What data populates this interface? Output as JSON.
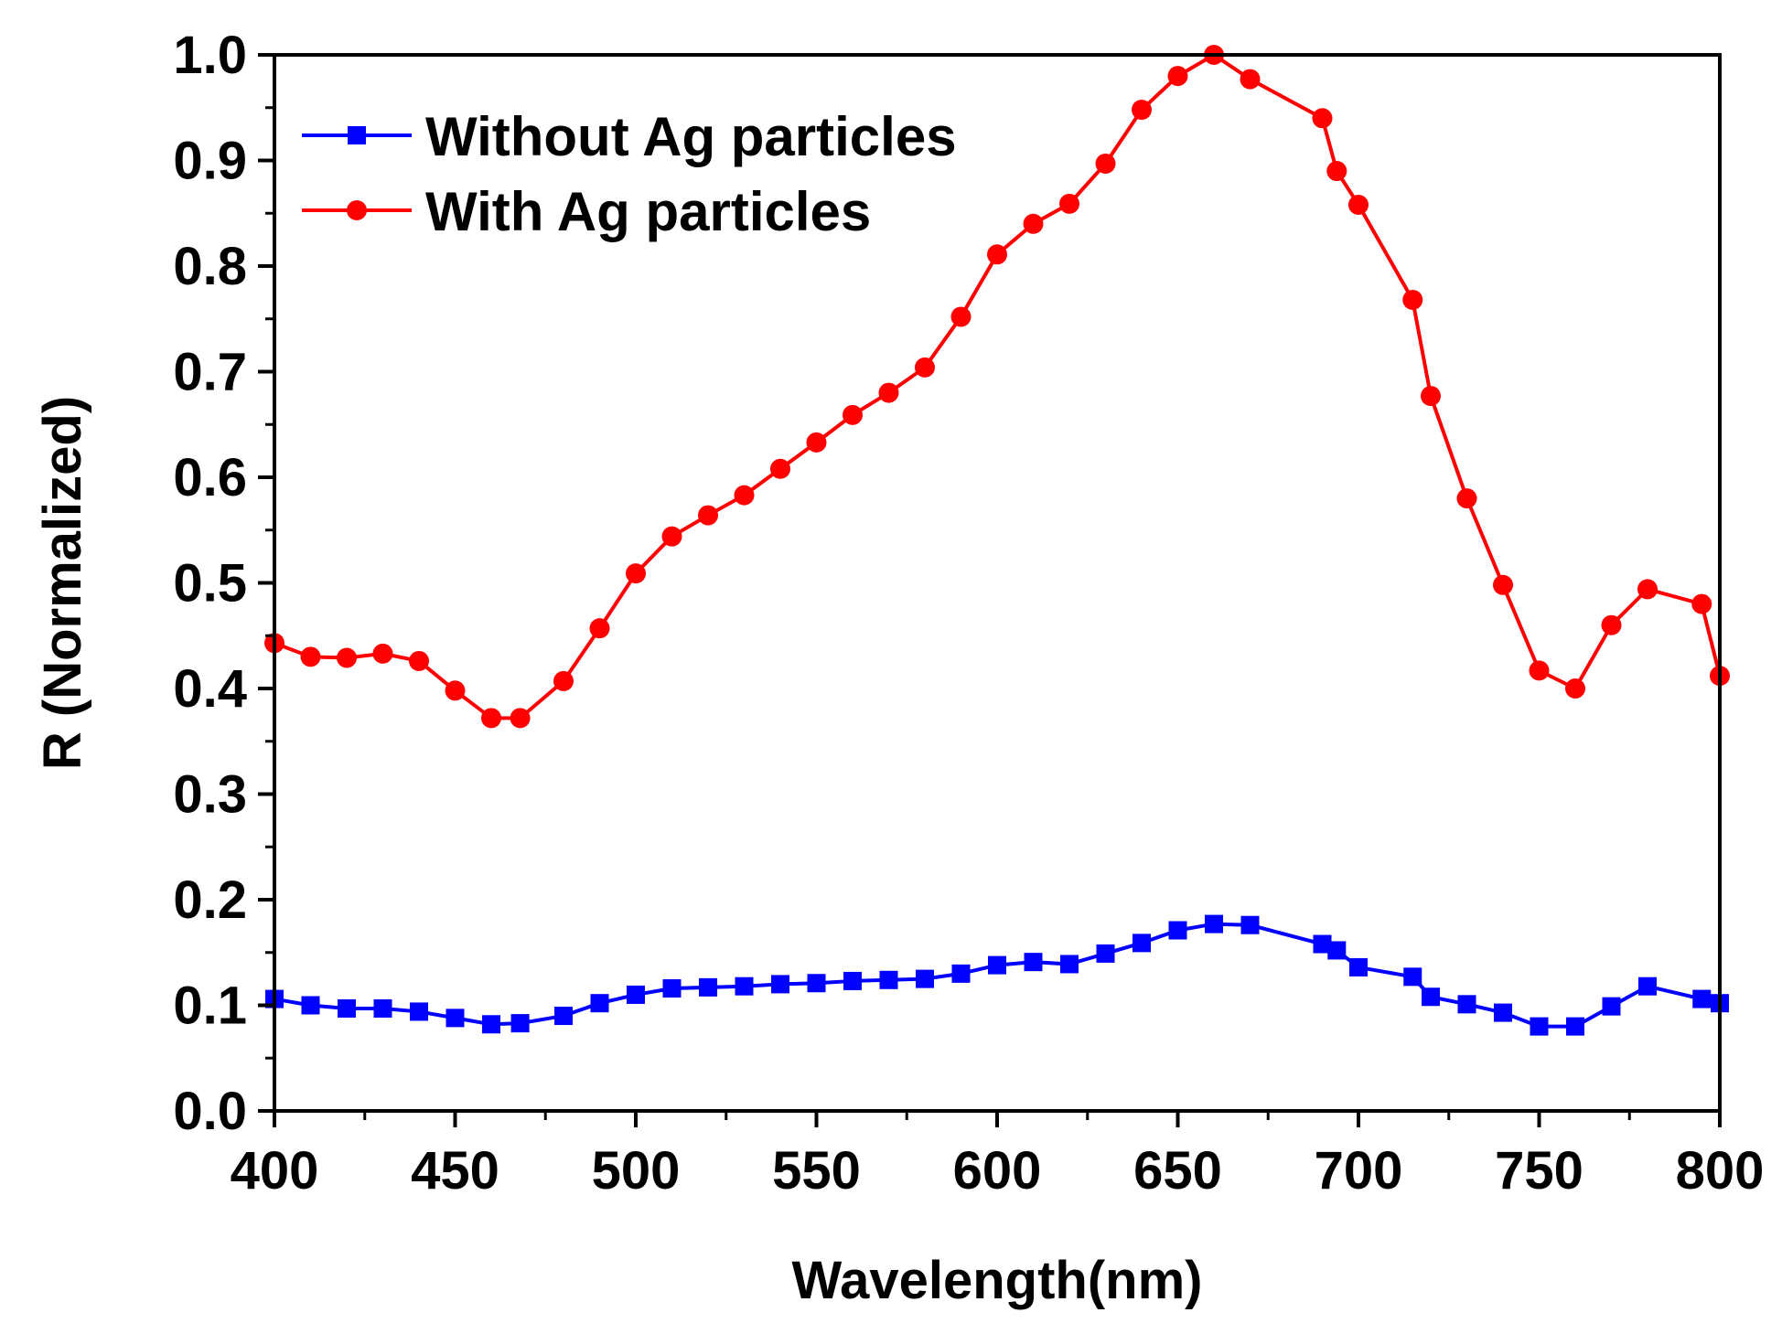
{
  "chart_data": {
    "type": "line",
    "title": "",
    "xlabel": "Wavelength(nm)",
    "ylabel": "R (Normalized)",
    "xlim": [
      400,
      800
    ],
    "ylim": [
      0.0,
      1.0
    ],
    "xticks": [
      400,
      450,
      500,
      550,
      600,
      650,
      700,
      750,
      800
    ],
    "xtick_labels": [
      "400",
      "450",
      "500",
      "550",
      "600",
      "650",
      "700",
      "750",
      "800"
    ],
    "yticks": [
      0.0,
      0.1,
      0.2,
      0.3,
      0.4,
      0.5,
      0.6,
      0.7,
      0.8,
      0.9,
      1.0
    ],
    "ytick_labels": [
      "0.0",
      "0.1",
      "0.2",
      "0.3",
      "0.4",
      "0.5",
      "0.6",
      "0.7",
      "0.8",
      "0.9",
      "1.0"
    ],
    "grid": false,
    "legend_position": "top-left",
    "series": [
      {
        "name": "Without Ag particles",
        "color": "#0000ff",
        "marker": "square",
        "points": [
          [
            400,
            0.106
          ],
          [
            410,
            0.1
          ],
          [
            420,
            0.097
          ],
          [
            430,
            0.097
          ],
          [
            440,
            0.094
          ],
          [
            450,
            0.088
          ],
          [
            460,
            0.082
          ],
          [
            468,
            0.083
          ],
          [
            480,
            0.09
          ],
          [
            490,
            0.102
          ],
          [
            500,
            0.11
          ],
          [
            510,
            0.116
          ],
          [
            520,
            0.117
          ],
          [
            530,
            0.118
          ],
          [
            540,
            0.12
          ],
          [
            550,
            0.121
          ],
          [
            560,
            0.123
          ],
          [
            570,
            0.124
          ],
          [
            580,
            0.125
          ],
          [
            590,
            0.13
          ],
          [
            600,
            0.138
          ],
          [
            610,
            0.141
          ],
          [
            620,
            0.139
          ],
          [
            630,
            0.149
          ],
          [
            640,
            0.159
          ],
          [
            650,
            0.171
          ],
          [
            660,
            0.177
          ],
          [
            670,
            0.176
          ],
          [
            690,
            0.158
          ],
          [
            694,
            0.152
          ],
          [
            700,
            0.136
          ],
          [
            715,
            0.127
          ],
          [
            720,
            0.108
          ],
          [
            730,
            0.101
          ],
          [
            740,
            0.093
          ],
          [
            750,
            0.08
          ],
          [
            760,
            0.08
          ],
          [
            770,
            0.099
          ],
          [
            780,
            0.118
          ],
          [
            795,
            0.106
          ],
          [
            800,
            0.102
          ]
        ]
      },
      {
        "name": "With Ag particles",
        "color": "#ff0000",
        "marker": "circle",
        "points": [
          [
            400,
            0.443
          ],
          [
            410,
            0.43
          ],
          [
            420,
            0.429
          ],
          [
            430,
            0.433
          ],
          [
            440,
            0.426
          ],
          [
            450,
            0.398
          ],
          [
            460,
            0.372
          ],
          [
            468,
            0.372
          ],
          [
            480,
            0.407
          ],
          [
            490,
            0.457
          ],
          [
            500,
            0.509
          ],
          [
            510,
            0.544
          ],
          [
            520,
            0.564
          ],
          [
            530,
            0.583
          ],
          [
            540,
            0.608
          ],
          [
            550,
            0.633
          ],
          [
            560,
            0.659
          ],
          [
            570,
            0.68
          ],
          [
            580,
            0.704
          ],
          [
            590,
            0.752
          ],
          [
            600,
            0.811
          ],
          [
            610,
            0.84
          ],
          [
            620,
            0.859
          ],
          [
            630,
            0.897
          ],
          [
            640,
            0.948
          ],
          [
            650,
            0.98
          ],
          [
            660,
            1.0
          ],
          [
            670,
            0.977
          ],
          [
            690,
            0.94
          ],
          [
            694,
            0.89
          ],
          [
            700,
            0.858
          ],
          [
            715,
            0.768
          ],
          [
            720,
            0.677
          ],
          [
            730,
            0.58
          ],
          [
            740,
            0.498
          ],
          [
            750,
            0.417
          ],
          [
            760,
            0.4
          ],
          [
            770,
            0.46
          ],
          [
            780,
            0.494
          ],
          [
            795,
            0.48
          ],
          [
            800,
            0.412
          ]
        ]
      }
    ]
  }
}
